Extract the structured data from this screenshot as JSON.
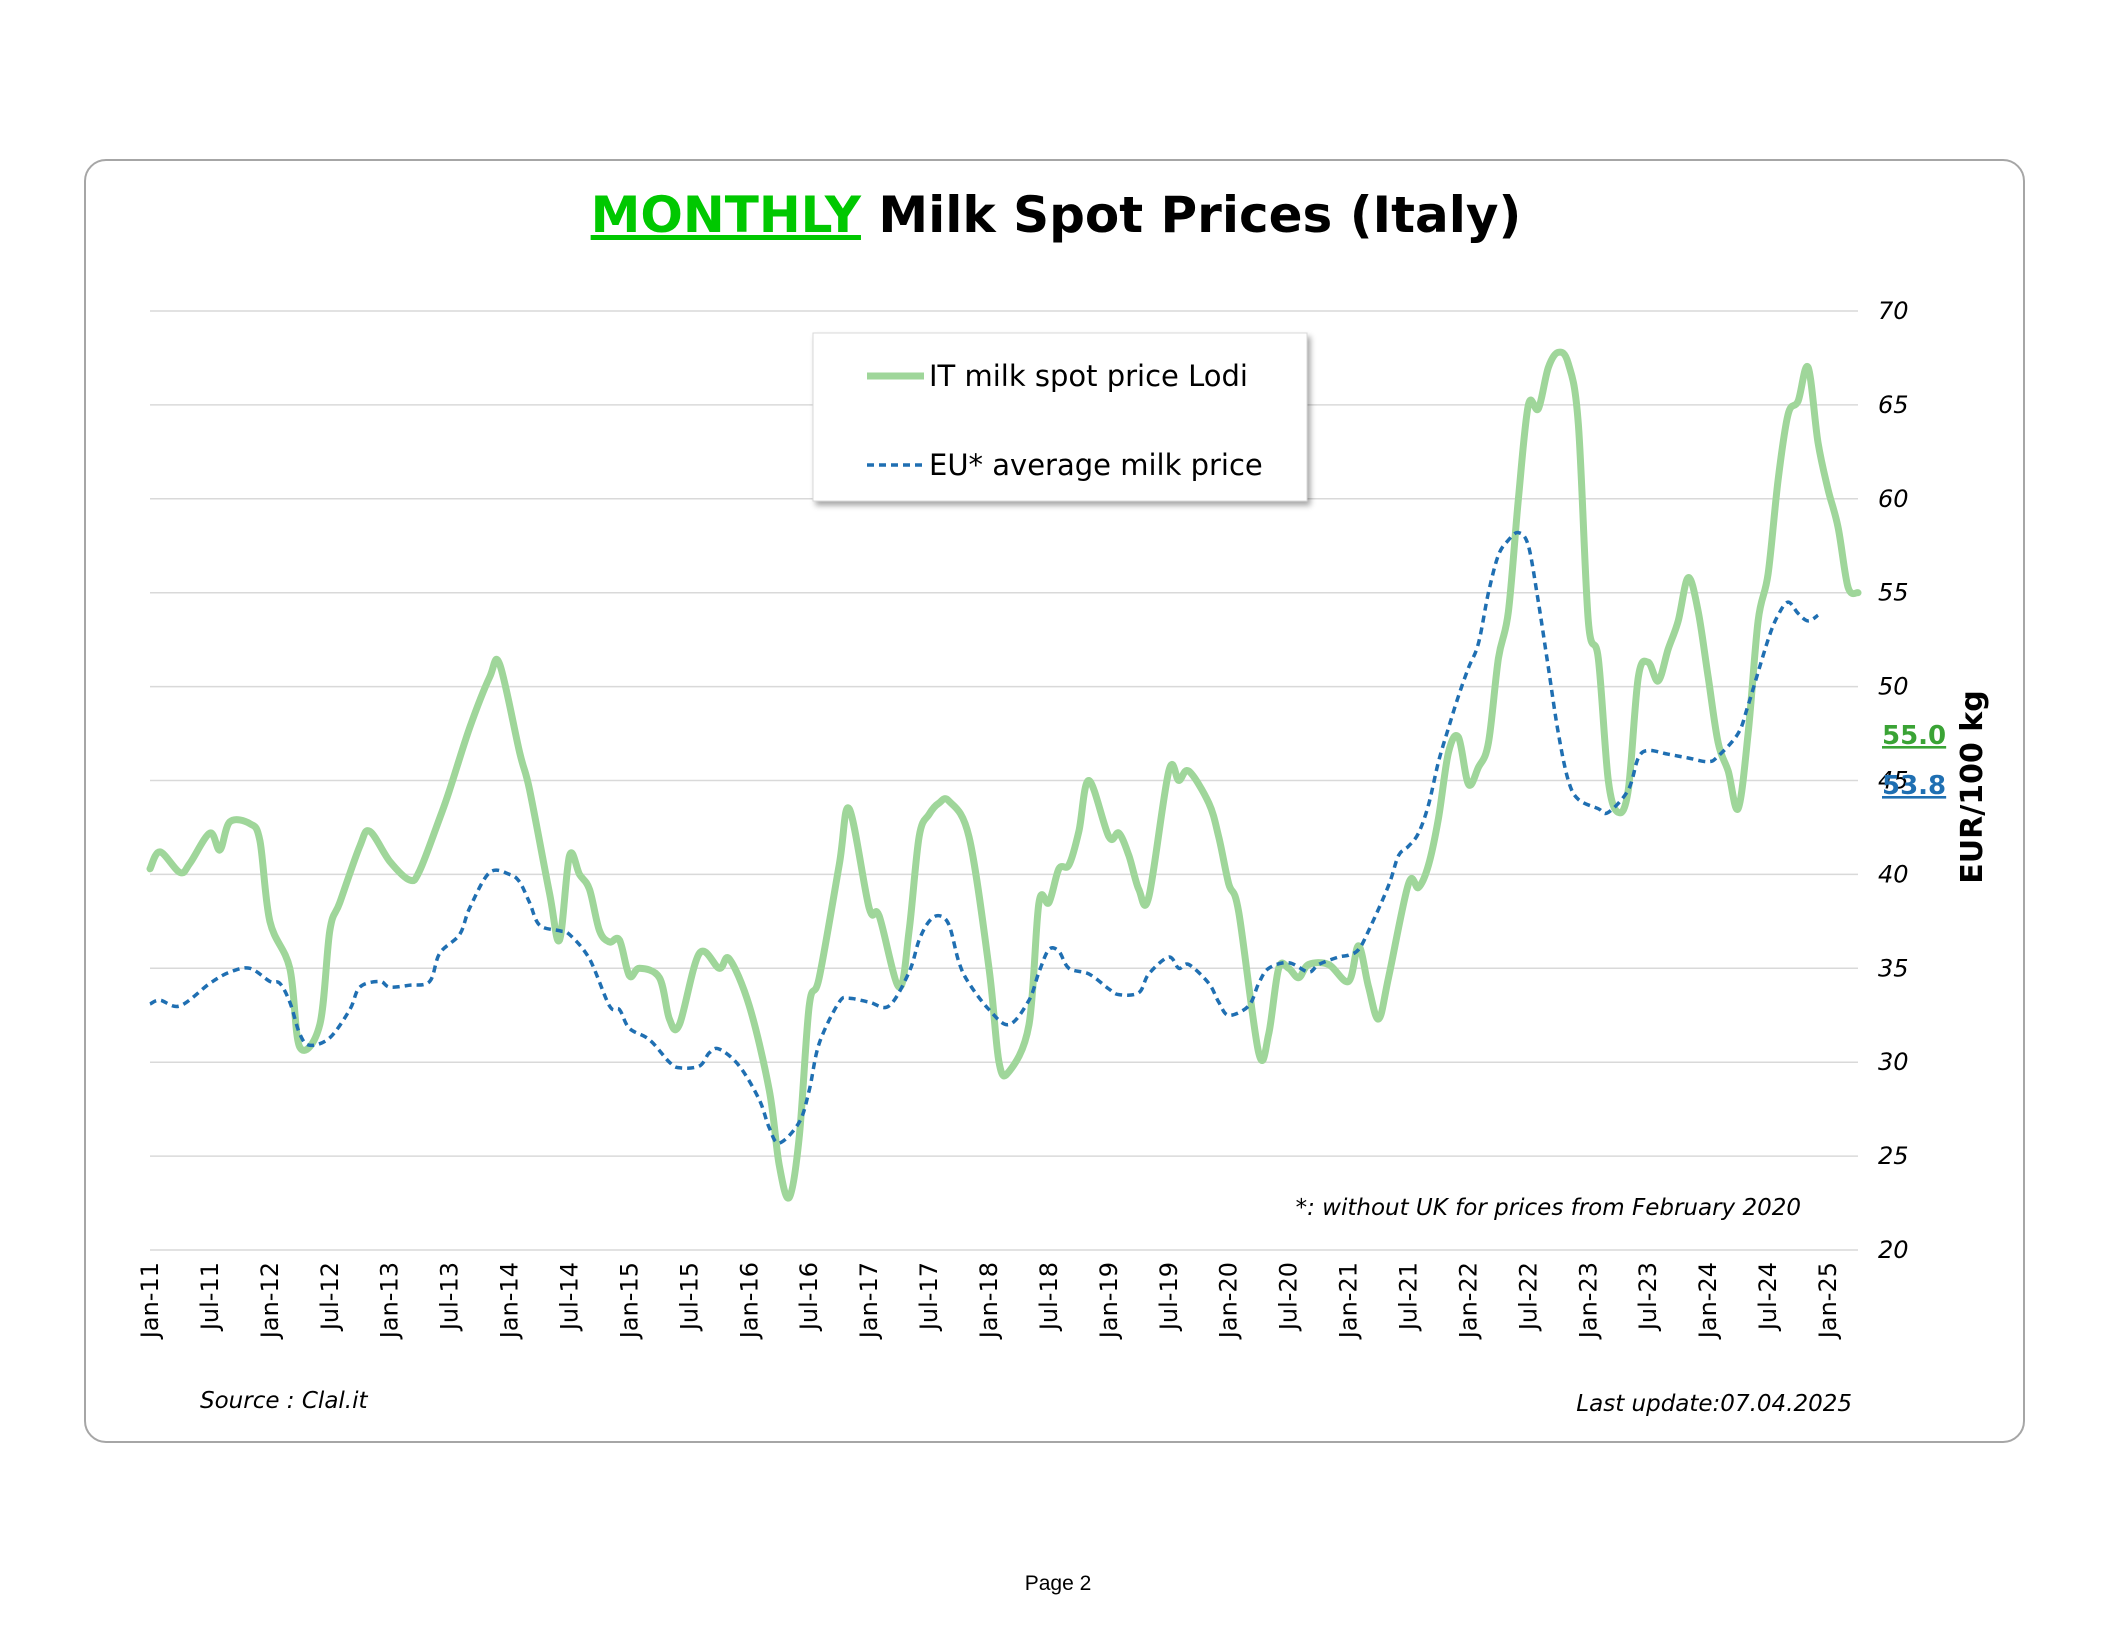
{
  "page": {
    "page_label": "Page 2"
  },
  "chart_data": {
    "type": "line",
    "title_highlight": "MONTHLY",
    "title_rest": " Milk Spot Prices (Italy)",
    "ylabel": "EUR/100 kg",
    "ylim": [
      20,
      70
    ],
    "y_ticks": [
      "70",
      "65",
      "60",
      "55",
      "50",
      "45",
      "40",
      "35",
      "30",
      "25",
      "20"
    ],
    "y_axis_side": "right",
    "grid": true,
    "x_tick_labels": [
      "Jan-11",
      "Jul-11",
      "Jan-12",
      "Jul-12",
      "Jan-13",
      "Jul-13",
      "Jan-14",
      "Jul-14",
      "Jan-15",
      "Jul-15",
      "Jan-16",
      "Jul-16",
      "Jan-17",
      "Jul-17",
      "Jan-18",
      "Jul-18",
      "Jan-19",
      "Jul-19",
      "Jan-20",
      "Jul-20",
      "Jan-21",
      "Jul-21",
      "Jan-22",
      "Jul-22",
      "Jan-23",
      "Jul-23",
      "Jan-24",
      "Jul-24",
      "Jan-25"
    ],
    "x_start": "2011-01",
    "x_end": "2025-04",
    "legend_position": "top-center",
    "series": [
      {
        "name": "IT milk spot price Lodi",
        "color": "#9fd69a",
        "style": "solid",
        "keypoints": [
          [
            "2011-01",
            40.3
          ],
          [
            "2011-02",
            41.2
          ],
          [
            "2011-04",
            40.1
          ],
          [
            "2011-05",
            40.6
          ],
          [
            "2011-07",
            42.2
          ],
          [
            "2011-08",
            41.3
          ],
          [
            "2011-09",
            42.8
          ],
          [
            "2011-11",
            42.7
          ],
          [
            "2011-12",
            41.8
          ],
          [
            "2012-01",
            37.5
          ],
          [
            "2012-03",
            35.0
          ],
          [
            "2012-04",
            30.8
          ],
          [
            "2012-06",
            32.0
          ],
          [
            "2012-07",
            37.0
          ],
          [
            "2012-08",
            38.5
          ],
          [
            "2012-10",
            41.5
          ],
          [
            "2012-11",
            42.3
          ],
          [
            "2013-01",
            40.7
          ],
          [
            "2013-03",
            39.7
          ],
          [
            "2013-04",
            40.2
          ],
          [
            "2013-06",
            43.0
          ],
          [
            "2013-07",
            44.5
          ],
          [
            "2013-09",
            47.8
          ],
          [
            "2013-11",
            50.5
          ],
          [
            "2013-12",
            51.2
          ],
          [
            "2014-02",
            46.5
          ],
          [
            "2014-03",
            44.5
          ],
          [
            "2014-05",
            39.0
          ],
          [
            "2014-06",
            36.5
          ],
          [
            "2014-07",
            41.0
          ],
          [
            "2014-08",
            40.0
          ],
          [
            "2014-09",
            39.2
          ],
          [
            "2014-10",
            37.0
          ],
          [
            "2014-11",
            36.4
          ],
          [
            "2014-12",
            36.5
          ],
          [
            "2015-01",
            34.6
          ],
          [
            "2015-02",
            35.0
          ],
          [
            "2015-04",
            34.5
          ],
          [
            "2015-05",
            32.3
          ],
          [
            "2015-06",
            32.0
          ],
          [
            "2015-08",
            35.8
          ],
          [
            "2015-10",
            35.0
          ],
          [
            "2015-11",
            35.5
          ],
          [
            "2016-01",
            33.0
          ],
          [
            "2016-03",
            28.5
          ],
          [
            "2016-04",
            24.5
          ],
          [
            "2016-05",
            22.8
          ],
          [
            "2016-06",
            26.0
          ],
          [
            "2016-07",
            33.0
          ],
          [
            "2016-08",
            34.5
          ],
          [
            "2016-10",
            40.5
          ],
          [
            "2016-11",
            43.5
          ],
          [
            "2017-01",
            38.2
          ],
          [
            "2017-02",
            37.8
          ],
          [
            "2017-04",
            34.0
          ],
          [
            "2017-05",
            37.0
          ],
          [
            "2017-06",
            42.0
          ],
          [
            "2017-07",
            43.2
          ],
          [
            "2017-08",
            43.8
          ],
          [
            "2017-09",
            43.9
          ],
          [
            "2017-11",
            42.0
          ],
          [
            "2018-01",
            35.0
          ],
          [
            "2018-02",
            30.0
          ],
          [
            "2018-03",
            29.5
          ],
          [
            "2018-05",
            32.0
          ],
          [
            "2018-06",
            38.5
          ],
          [
            "2018-07",
            38.5
          ],
          [
            "2018-08",
            40.3
          ],
          [
            "2018-09",
            40.5
          ],
          [
            "2018-10",
            42.3
          ],
          [
            "2018-11",
            45.0
          ],
          [
            "2019-01",
            42.0
          ],
          [
            "2019-02",
            42.2
          ],
          [
            "2019-03",
            41.0
          ],
          [
            "2019-04",
            39.2
          ],
          [
            "2019-05",
            38.8
          ],
          [
            "2019-07",
            45.5
          ],
          [
            "2019-08",
            45.0
          ],
          [
            "2019-09",
            45.5
          ],
          [
            "2019-11",
            43.8
          ],
          [
            "2019-12",
            42.0
          ],
          [
            "2020-01",
            39.5
          ],
          [
            "2020-02",
            38.0
          ],
          [
            "2020-04",
            30.5
          ],
          [
            "2020-05",
            31.5
          ],
          [
            "2020-06",
            35.0
          ],
          [
            "2020-07",
            35.0
          ],
          [
            "2020-08",
            34.5
          ],
          [
            "2020-09",
            35.2
          ],
          [
            "2020-11",
            35.2
          ],
          [
            "2021-01",
            34.3
          ],
          [
            "2021-02",
            36.2
          ],
          [
            "2021-03",
            34.0
          ],
          [
            "2021-04",
            32.3
          ],
          [
            "2021-05",
            34.5
          ],
          [
            "2021-07",
            39.5
          ],
          [
            "2021-08",
            39.3
          ],
          [
            "2021-09",
            40.5
          ],
          [
            "2021-10",
            43.0
          ],
          [
            "2021-11",
            46.5
          ],
          [
            "2021-12",
            47.3
          ],
          [
            "2022-01",
            44.8
          ],
          [
            "2022-02",
            45.7
          ],
          [
            "2022-03",
            47.0
          ],
          [
            "2022-04",
            51.5
          ],
          [
            "2022-05",
            54.0
          ],
          [
            "2022-06",
            60.0
          ],
          [
            "2022-07",
            65.0
          ],
          [
            "2022-08",
            64.8
          ],
          [
            "2022-09",
            67.0
          ],
          [
            "2022-10",
            67.8
          ],
          [
            "2022-11",
            67.2
          ],
          [
            "2022-12",
            64.0
          ],
          [
            "2023-01",
            53.5
          ],
          [
            "2023-02",
            51.5
          ],
          [
            "2023-03",
            45.0
          ],
          [
            "2023-04",
            43.3
          ],
          [
            "2023-05",
            44.5
          ],
          [
            "2023-06",
            50.5
          ],
          [
            "2023-07",
            51.3
          ],
          [
            "2023-08",
            50.3
          ],
          [
            "2023-09",
            52.0
          ],
          [
            "2023-10",
            53.5
          ],
          [
            "2023-11",
            55.8
          ],
          [
            "2023-12",
            54.0
          ],
          [
            "2024-01",
            50.5
          ],
          [
            "2024-02",
            47.0
          ],
          [
            "2024-03",
            45.5
          ],
          [
            "2024-04",
            43.5
          ],
          [
            "2024-05",
            47.5
          ],
          [
            "2024-06",
            53.5
          ],
          [
            "2024-07",
            56.0
          ],
          [
            "2024-08",
            61.0
          ],
          [
            "2024-09",
            64.5
          ],
          [
            "2024-10",
            65.2
          ],
          [
            "2024-11",
            67.0
          ],
          [
            "2024-12",
            63.0
          ],
          [
            "2025-01",
            60.5
          ],
          [
            "2025-02",
            58.5
          ],
          [
            "2025-03",
            55.3
          ],
          [
            "2025-04",
            55.0
          ]
        ],
        "last_value_label": "55.0"
      },
      {
        "name": "EU* average milk price",
        "color": "#1f6fb2",
        "style": "dashed",
        "keypoints": [
          [
            "2011-01",
            33.1
          ],
          [
            "2011-02",
            33.3
          ],
          [
            "2011-04",
            33.0
          ],
          [
            "2011-07",
            34.2
          ],
          [
            "2011-09",
            34.8
          ],
          [
            "2011-11",
            35.0
          ],
          [
            "2012-01",
            34.3
          ],
          [
            "2012-02",
            34.2
          ],
          [
            "2012-03",
            33.2
          ],
          [
            "2012-04",
            31.5
          ],
          [
            "2012-05",
            30.9
          ],
          [
            "2012-07",
            31.3
          ],
          [
            "2012-09",
            32.8
          ],
          [
            "2012-10",
            34.0
          ],
          [
            "2012-12",
            34.3
          ],
          [
            "2013-01",
            34.0
          ],
          [
            "2013-03",
            34.1
          ],
          [
            "2013-05",
            34.3
          ],
          [
            "2013-06",
            35.8
          ],
          [
            "2013-08",
            36.8
          ],
          [
            "2013-09",
            38.2
          ],
          [
            "2013-11",
            40.1
          ],
          [
            "2014-01",
            40.0
          ],
          [
            "2014-02",
            39.6
          ],
          [
            "2014-03",
            38.5
          ],
          [
            "2014-04",
            37.3
          ],
          [
            "2014-06",
            37.0
          ],
          [
            "2014-07",
            36.8
          ],
          [
            "2014-09",
            35.5
          ],
          [
            "2014-11",
            33.0
          ],
          [
            "2014-12",
            32.8
          ],
          [
            "2015-01",
            31.8
          ],
          [
            "2015-03",
            31.2
          ],
          [
            "2015-05",
            30.0
          ],
          [
            "2015-06",
            29.7
          ],
          [
            "2015-08",
            29.8
          ],
          [
            "2015-09",
            30.5
          ],
          [
            "2015-10",
            30.7
          ],
          [
            "2015-12",
            29.8
          ],
          [
            "2016-02",
            28.0
          ],
          [
            "2016-03",
            26.5
          ],
          [
            "2016-04",
            25.7
          ],
          [
            "2016-06",
            26.8
          ],
          [
            "2016-07",
            28.5
          ],
          [
            "2016-08",
            31.0
          ],
          [
            "2016-10",
            33.2
          ],
          [
            "2016-11",
            33.4
          ],
          [
            "2017-01",
            33.2
          ],
          [
            "2017-03",
            33.0
          ],
          [
            "2017-05",
            34.8
          ],
          [
            "2017-06",
            36.5
          ],
          [
            "2017-07",
            37.5
          ],
          [
            "2017-08",
            37.8
          ],
          [
            "2017-09",
            37.3
          ],
          [
            "2017-10",
            35.3
          ],
          [
            "2017-11",
            34.2
          ],
          [
            "2018-01",
            32.8
          ],
          [
            "2018-03",
            32.0
          ],
          [
            "2018-05",
            33.3
          ],
          [
            "2018-06",
            34.8
          ],
          [
            "2018-07",
            36.0
          ],
          [
            "2018-08",
            35.9
          ],
          [
            "2018-09",
            35.0
          ],
          [
            "2018-11",
            34.7
          ],
          [
            "2019-01",
            33.9
          ],
          [
            "2019-02",
            33.6
          ],
          [
            "2019-04",
            33.7
          ],
          [
            "2019-05",
            34.7
          ],
          [
            "2019-07",
            35.6
          ],
          [
            "2019-08",
            35.0
          ],
          [
            "2019-09",
            35.2
          ],
          [
            "2019-11",
            34.2
          ],
          [
            "2019-12",
            33.2
          ],
          [
            "2020-01",
            32.5
          ],
          [
            "2020-03",
            33.0
          ],
          [
            "2020-04",
            34.2
          ],
          [
            "2020-05",
            35.0
          ],
          [
            "2020-07",
            35.3
          ],
          [
            "2020-09",
            34.8
          ],
          [
            "2020-10",
            35.2
          ],
          [
            "2020-12",
            35.6
          ],
          [
            "2021-01",
            35.7
          ],
          [
            "2021-02",
            36.0
          ],
          [
            "2021-03",
            37.0
          ],
          [
            "2021-05",
            39.4
          ],
          [
            "2021-06",
            41.0
          ],
          [
            "2021-07",
            41.5
          ],
          [
            "2021-08",
            42.2
          ],
          [
            "2021-09",
            43.7
          ],
          [
            "2021-10",
            46.0
          ],
          [
            "2021-11",
            47.8
          ],
          [
            "2021-12",
            49.5
          ],
          [
            "2022-01",
            51.0
          ],
          [
            "2022-02",
            52.3
          ],
          [
            "2022-03",
            55.0
          ],
          [
            "2022-04",
            57.0
          ],
          [
            "2022-05",
            57.8
          ],
          [
            "2022-06",
            58.2
          ],
          [
            "2022-07",
            57.5
          ],
          [
            "2022-08",
            54.5
          ],
          [
            "2022-09",
            51.0
          ],
          [
            "2022-10",
            47.5
          ],
          [
            "2022-11",
            45.0
          ],
          [
            "2022-12",
            44.0
          ],
          [
            "2023-02",
            43.5
          ],
          [
            "2023-03",
            43.3
          ],
          [
            "2023-05",
            44.5
          ],
          [
            "2023-06",
            46.2
          ],
          [
            "2023-07",
            46.6
          ],
          [
            "2023-09",
            46.4
          ],
          [
            "2023-11",
            46.2
          ],
          [
            "2024-01",
            46.0
          ],
          [
            "2024-02",
            46.3
          ],
          [
            "2024-04",
            47.5
          ],
          [
            "2024-05",
            49.0
          ],
          [
            "2024-07",
            52.5
          ],
          [
            "2024-08",
            53.8
          ],
          [
            "2024-09",
            54.5
          ],
          [
            "2024-10",
            53.9
          ],
          [
            "2024-11",
            53.5
          ],
          [
            "2024-12",
            53.8
          ]
        ],
        "last_value_label": "53.8"
      }
    ],
    "annotation": "*: without UK for prices from February 2020",
    "source_text": "Source : Clal.it",
    "update_text": "Last update:07.04.2025"
  }
}
